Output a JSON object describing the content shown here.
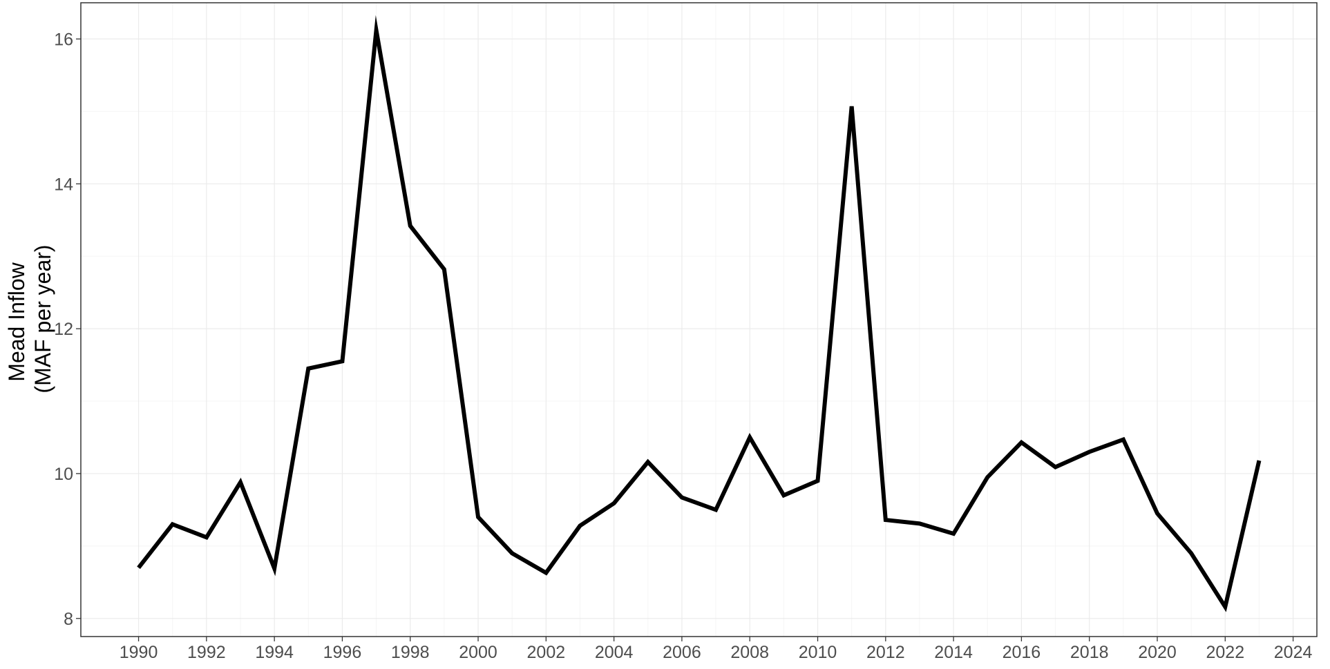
{
  "chart_data": {
    "type": "line",
    "title": "",
    "xlabel": "",
    "ylabel_lines": [
      "Mead Inflow",
      "(MAF per year)"
    ],
    "x": [
      1990,
      1991,
      1992,
      1993,
      1994,
      1995,
      1996,
      1997,
      1998,
      1999,
      2000,
      2001,
      2002,
      2003,
      2004,
      2005,
      2006,
      2007,
      2008,
      2009,
      2010,
      2011,
      2012,
      2013,
      2014,
      2015,
      2016,
      2017,
      2018,
      2019,
      2020,
      2021,
      2022,
      2023
    ],
    "series": [
      {
        "values": [
          8.7,
          9.3,
          9.12,
          9.88,
          8.69,
          11.45,
          11.55,
          16.12,
          13.42,
          12.82,
          9.4,
          8.9,
          8.63,
          9.28,
          9.59,
          10.16,
          9.67,
          9.5,
          10.5,
          9.7,
          9.9,
          15.07,
          9.36,
          9.31,
          9.17,
          9.95,
          10.43,
          10.09,
          10.3,
          10.47,
          9.45,
          8.9,
          8.16,
          10.18
        ],
        "color": "#000000"
      }
    ],
    "xlim": [
      1988.3,
      2024.7
    ],
    "ylim": [
      7.75,
      16.5
    ],
    "xticks": [
      1990,
      1992,
      1994,
      1996,
      1998,
      2000,
      2002,
      2004,
      2006,
      2008,
      2010,
      2012,
      2014,
      2016,
      2018,
      2020,
      2022,
      2024
    ],
    "yticks": [
      8,
      10,
      12,
      14,
      16
    ],
    "grid": true,
    "legend": "none",
    "colors": {
      "background": "#ffffff",
      "panel_border": "#333333",
      "grid_major": "#ebebeb",
      "grid_minor": "#f5f5f5",
      "tick_text": "#4d4d4d",
      "axis_title": "#000000"
    }
  }
}
